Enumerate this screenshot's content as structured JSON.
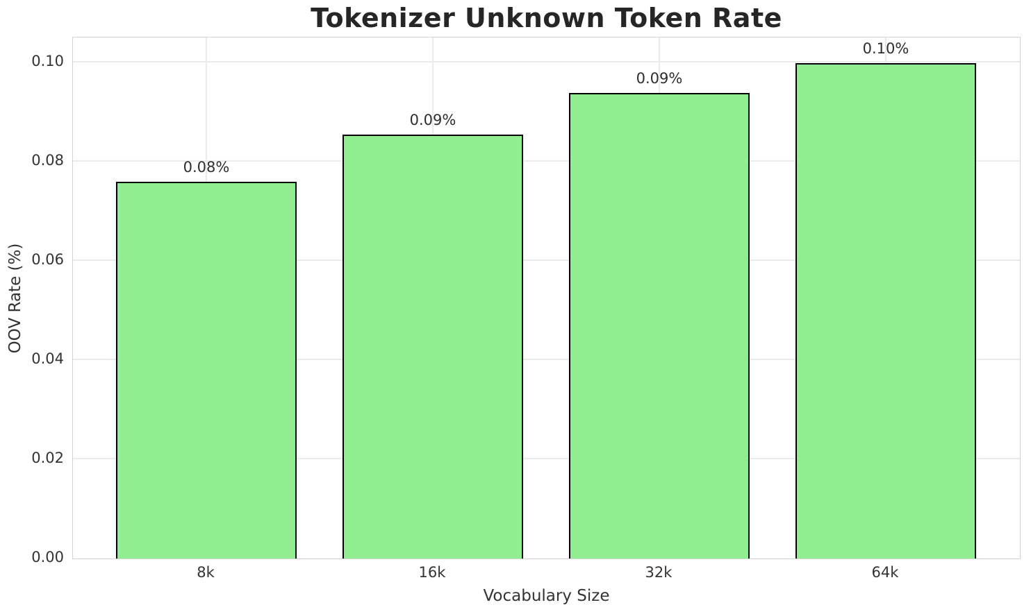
{
  "chart_data": {
    "type": "bar",
    "title": "Tokenizer Unknown Token Rate",
    "xlabel": "Vocabulary Size",
    "ylabel": "OOV Rate (%)",
    "categories": [
      "8k",
      "16k",
      "32k",
      "64k"
    ],
    "values": [
      0.076,
      0.0855,
      0.0938,
      0.0998
    ],
    "bar_labels": [
      "0.08%",
      "0.09%",
      "0.09%",
      "0.10%"
    ],
    "ylim": [
      0,
      0.1049
    ],
    "yticks": [
      0,
      0.02,
      0.04,
      0.06,
      0.08,
      0.1
    ],
    "ytick_labels": [
      "0.00",
      "0.02",
      "0.04",
      "0.06",
      "0.08",
      "0.10"
    ],
    "grid": true,
    "legend": "none",
    "bar_color": "#90EE90",
    "bar_edge_color": "#000000",
    "gridline_color": "#ebebeb",
    "spine_color": "#d2d2d2"
  }
}
